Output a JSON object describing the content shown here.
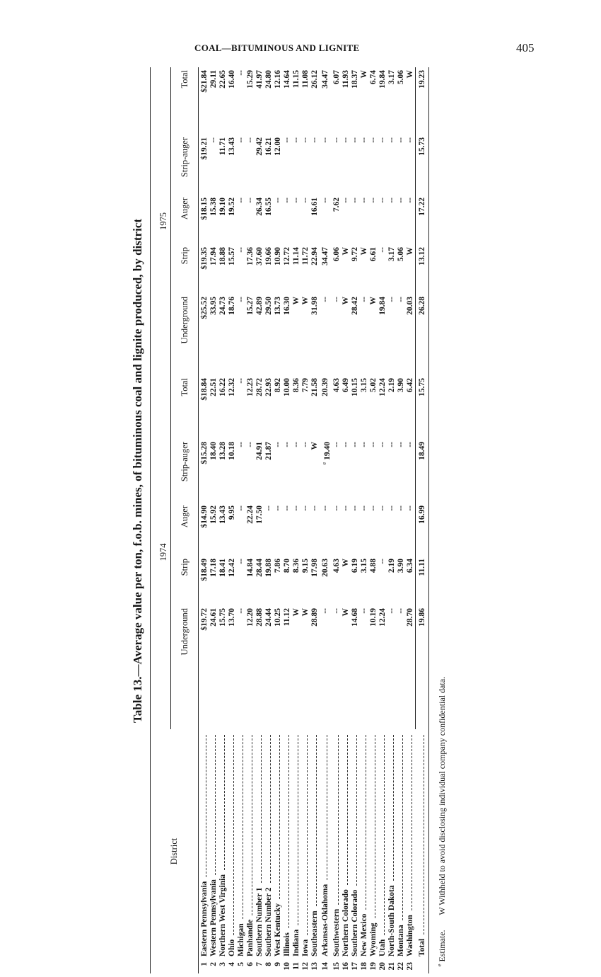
{
  "running_head": "COAL—BITUMINOUS AND LIGNITE",
  "page_number": "405",
  "title": "Table 13.—Average value per ton, f.o.b. mines, of bituminous coal and lignite produced, by district",
  "header": {
    "district": "District",
    "years": [
      "1974",
      "1975"
    ],
    "columns": [
      "Underground",
      "Strip",
      "Auger",
      "Strip-auger",
      "Total"
    ]
  },
  "rows": [
    {
      "n": "1",
      "district": "Eastern Pennsylvania",
      "y1974": [
        "$19.72",
        "$18.49",
        "$14.90",
        "$15.28",
        "$18.84"
      ],
      "y1975": [
        "$25.52",
        "$19.35",
        "$18.15",
        "$19.21",
        "$21.84"
      ]
    },
    {
      "n": "2",
      "district": "Western Pennsylvania",
      "y1974": [
        "24.61",
        "17.18",
        "15.92",
        "18.40",
        "22.51"
      ],
      "y1975": [
        "33.95",
        "17.94",
        "15.38",
        "--",
        "29.11"
      ]
    },
    {
      "n": "3",
      "district": "Northern West Virginia",
      "y1974": [
        "15.75",
        "18.41",
        "13.43",
        "13.28",
        "16.22"
      ],
      "y1975": [
        "24.73",
        "18.88",
        "19.10",
        "11.71",
        "22.65"
      ]
    },
    {
      "n": "4",
      "district": "Ohio",
      "y1974": [
        "13.70",
        "12.42",
        "9.95",
        "10.18",
        "12.32"
      ],
      "y1975": [
        "18.76",
        "15.57",
        "19.52",
        "13.43",
        "16.40"
      ]
    },
    {
      "n": "5",
      "district": "Michigan",
      "y1974": [
        "--",
        "--",
        "--",
        "--",
        "--"
      ],
      "y1975": [
        "--",
        "--",
        "--",
        "--",
        "--"
      ]
    },
    {
      "n": "6",
      "district": "Panhandle",
      "y1974": [
        "12.20",
        "14.84",
        "22.24",
        "--",
        "12.23"
      ],
      "y1975": [
        "15.27",
        "17.36",
        "--",
        "--",
        "15.29"
      ]
    },
    {
      "n": "7",
      "district": "Southern Number 1",
      "y1974": [
        "28.88",
        "28.44",
        "17.50",
        "24.91",
        "28.72"
      ],
      "y1975": [
        "42.89",
        "37.60",
        "26.34",
        "29.42",
        "41.97"
      ]
    },
    {
      "n": "8",
      "district": "Southern Number 2",
      "y1974": [
        "24.44",
        "19.88",
        "--",
        "21.87",
        "22.93"
      ],
      "y1975": [
        "29.50",
        "19.66",
        "16.55",
        "16.21",
        "24.80"
      ]
    },
    {
      "n": "9",
      "district": "West Kentucky",
      "y1974": [
        "10.25",
        "7.86",
        "--",
        "--",
        "8.92"
      ],
      "y1975": [
        "13.73",
        "10.90",
        "--",
        "12.00",
        "12.16"
      ]
    },
    {
      "n": "10",
      "district": "Illinois",
      "y1974": [
        "11.12",
        "8.70",
        "--",
        "--",
        "10.00"
      ],
      "y1975": [
        "16.30",
        "12.72",
        "--",
        "--",
        "14.64"
      ]
    },
    {
      "n": "11",
      "district": "Indiana",
      "y1974": [
        "W",
        "8.36",
        "--",
        "--",
        "8.36"
      ],
      "y1975": [
        "W",
        "11.14",
        "--",
        "--",
        "11.15"
      ]
    },
    {
      "n": "12",
      "district": "Iowa",
      "y1974": [
        "W",
        "9.15",
        "--",
        "--",
        "7.79"
      ],
      "y1975": [
        "W",
        "11.72",
        "--",
        "--",
        "11.08"
      ]
    },
    {
      "n": "13",
      "district": "Southeastern",
      "y1974": [
        "28.89",
        "17.98",
        "--",
        "W",
        "21.58"
      ],
      "y1975": [
        "31.98",
        "22.94",
        "16.61",
        "--",
        "26.12"
      ]
    },
    {
      "n": "14",
      "district": "Arkansas-Oklahoma",
      "y1974": [
        "--",
        "20.63",
        "--",
        "e 19.40",
        "20.39"
      ],
      "y1975": [
        "--",
        "34.47",
        "--",
        "--",
        "34.47"
      ]
    },
    {
      "n": "15",
      "district": "Southwestern",
      "y1974": [
        "--",
        "4.63",
        "--",
        "--",
        "4.63"
      ],
      "y1975": [
        "--",
        "6.06",
        "7.62",
        "--",
        "6.07"
      ]
    },
    {
      "n": "16",
      "district": "Northern Colorado",
      "y1974": [
        "W",
        "W",
        "--",
        "--",
        "6.49"
      ],
      "y1975": [
        "W",
        "W",
        "--",
        "--",
        "11.93"
      ]
    },
    {
      "n": "17",
      "district": "Southern Colorado",
      "y1974": [
        "14.68",
        "6.19",
        "--",
        "--",
        "10.15"
      ],
      "y1975": [
        "28.42",
        "9.72",
        "--",
        "--",
        "18.37"
      ]
    },
    {
      "n": "18",
      "district": "New Mexico",
      "y1974": [
        "--",
        "3.15",
        "--",
        "--",
        "3.15"
      ],
      "y1975": [
        "--",
        "W",
        "--",
        "--",
        "W"
      ]
    },
    {
      "n": "19",
      "district": "Wyoming",
      "y1974": [
        "10.19",
        "4.88",
        "--",
        "--",
        "5.02"
      ],
      "y1975": [
        "W",
        "6.61",
        "--",
        "--",
        "6.74"
      ]
    },
    {
      "n": "20",
      "district": "Utah",
      "y1974": [
        "12.24",
        "--",
        "--",
        "--",
        "12.24"
      ],
      "y1975": [
        "19.84",
        "--",
        "--",
        "--",
        "19.84"
      ]
    },
    {
      "n": "21",
      "district": "North-South Dakota",
      "y1974": [
        "--",
        "2.19",
        "--",
        "--",
        "2.19"
      ],
      "y1975": [
        "--",
        "3.17",
        "--",
        "--",
        "3.17"
      ]
    },
    {
      "n": "22",
      "district": "Montana",
      "y1974": [
        "--",
        "3.90",
        "--",
        "--",
        "3.90"
      ],
      "y1975": [
        "--",
        "5.06",
        "--",
        "--",
        "5.06"
      ]
    },
    {
      "n": "23",
      "district": "Washington",
      "y1974": [
        "28.70",
        "6.34",
        "--",
        "--",
        "6.42"
      ],
      "y1975": [
        "20.03",
        "W",
        "--",
        "--",
        "W"
      ]
    }
  ],
  "total": {
    "label": "Total",
    "y1974": [
      "19.86",
      "11.11",
      "16.99",
      "18.49",
      "15.75"
    ],
    "y1975": [
      "26.28",
      "13.12",
      "17.22",
      "15.73",
      "19.23"
    ]
  },
  "footnotes": [
    {
      "mark": "e",
      "text": "Estimate."
    },
    {
      "mark": "W",
      "text": "Withheld to avoid disclosing individual company confidential data."
    }
  ]
}
